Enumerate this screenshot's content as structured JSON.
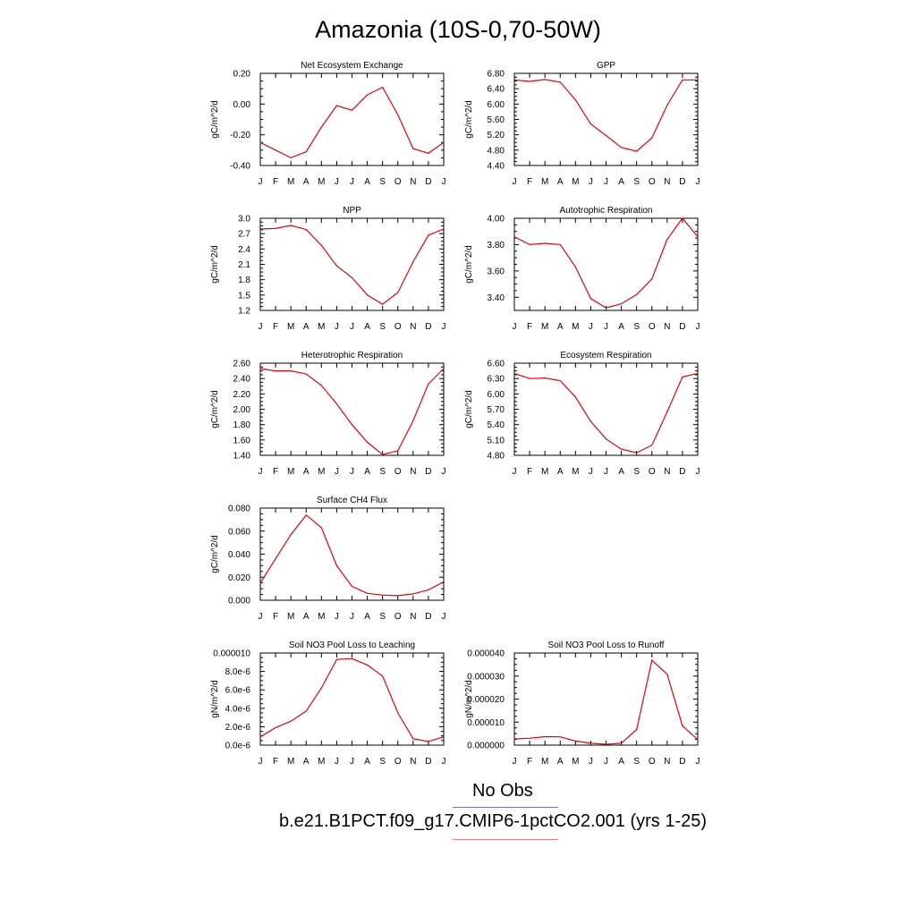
{
  "page": {
    "title": "Amazonia (10S-0,70-50W)"
  },
  "months": [
    "J",
    "F",
    "M",
    "A",
    "M",
    "J",
    "J",
    "A",
    "S",
    "O",
    "N",
    "D",
    "J"
  ],
  "colors": {
    "model": "#e8000b",
    "obs": "#7070f0",
    "obs_legend": "#7070f0",
    "model_legend": "#f08080"
  },
  "legend": {
    "obs_label": "No Obs",
    "model_label": "b.e21.B1PCT.f09_g17.CMIP6-1pctCO2.001 (yrs 1-25)"
  },
  "chart_data": [
    {
      "type": "line",
      "title": "Net Ecosystem Exchange",
      "ylabel": "gC/m^2/d",
      "ylim": [
        -0.4,
        0.2
      ],
      "yticks": [
        "0.20",
        "0.00",
        "-0.20",
        "-0.40"
      ],
      "ytick_values": [
        0.2,
        0.0,
        -0.2,
        -0.4
      ],
      "values": [
        -0.25,
        -0.3,
        -0.35,
        -0.31,
        -0.15,
        -0.01,
        -0.04,
        0.06,
        0.11,
        -0.07,
        -0.29,
        -0.32,
        -0.25
      ]
    },
    {
      "type": "line",
      "title": "GPP",
      "ylabel": "gC/m^2/d",
      "ylim": [
        4.4,
        6.8
      ],
      "yticks": [
        "6.80",
        "6.40",
        "6.00",
        "5.60",
        "5.20",
        "4.80",
        "4.40"
      ],
      "ytick_values": [
        6.8,
        6.4,
        6.0,
        5.6,
        5.2,
        4.8,
        4.4
      ],
      "values": [
        6.63,
        6.59,
        6.64,
        6.57,
        6.11,
        5.48,
        5.18,
        4.87,
        4.77,
        5.12,
        5.97,
        6.63,
        6.63
      ]
    },
    {
      "type": "line",
      "title": "NPP",
      "ylabel": "gC/m^2/d",
      "ylim": [
        1.2,
        3.0
      ],
      "yticks": [
        "3.0",
        "2.7",
        "2.4",
        "2.1",
        "1.8",
        "1.5",
        "1.2"
      ],
      "ytick_values": [
        3.0,
        2.7,
        2.4,
        2.1,
        1.8,
        1.5,
        1.2
      ],
      "values": [
        2.79,
        2.8,
        2.86,
        2.78,
        2.47,
        2.07,
        1.84,
        1.5,
        1.32,
        1.55,
        2.15,
        2.67,
        2.79
      ]
    },
    {
      "type": "line",
      "title": "Autotrophic Respiration",
      "ylabel": "gC/m^2/d",
      "ylim": [
        3.3,
        4.0
      ],
      "yticks": [
        "4.00",
        "3.80",
        "3.60",
        "3.40"
      ],
      "ytick_values": [
        4.0,
        3.8,
        3.6,
        3.4
      ],
      "values": [
        3.86,
        3.8,
        3.81,
        3.8,
        3.63,
        3.39,
        3.32,
        3.35,
        3.42,
        3.54,
        3.84,
        4.0,
        3.86
      ]
    },
    {
      "type": "line",
      "title": "Heterotrophic Respiration",
      "ylabel": "gC/m^2/d",
      "ylim": [
        1.4,
        2.6
      ],
      "yticks": [
        "2.60",
        "2.40",
        "2.20",
        "2.00",
        "1.80",
        "1.60",
        "1.40"
      ],
      "ytick_values": [
        2.6,
        2.4,
        2.2,
        2.0,
        1.8,
        1.6,
        1.4
      ],
      "values": [
        2.53,
        2.5,
        2.5,
        2.46,
        2.31,
        2.07,
        1.8,
        1.57,
        1.41,
        1.46,
        1.85,
        2.33,
        2.53
      ]
    },
    {
      "type": "line",
      "title": "Ecosystem Respiration",
      "ylabel": "gC/m^2/d",
      "ylim": [
        4.8,
        6.6
      ],
      "yticks": [
        "6.60",
        "6.30",
        "6.00",
        "5.70",
        "5.40",
        "5.10",
        "4.80"
      ],
      "ytick_values": [
        6.6,
        6.3,
        6.0,
        5.7,
        5.4,
        5.1,
        4.8
      ],
      "values": [
        6.4,
        6.3,
        6.31,
        6.26,
        5.94,
        5.46,
        5.12,
        4.92,
        4.85,
        5.0,
        5.65,
        6.33,
        6.4
      ]
    },
    {
      "type": "line",
      "title": "Surface CH4 Flux",
      "ylabel": "gC/m^2/d",
      "ylim": [
        0.0,
        0.08
      ],
      "yticks": [
        "0.080",
        "0.060",
        "0.040",
        "0.020",
        "0.000"
      ],
      "ytick_values": [
        0.08,
        0.06,
        0.04,
        0.02,
        0.0
      ],
      "values": [
        0.015,
        0.036,
        0.057,
        0.074,
        0.063,
        0.03,
        0.012,
        0.006,
        0.0045,
        0.004,
        0.0055,
        0.009,
        0.016
      ]
    },
    {
      "type": "line",
      "title": "Soil NO3 Pool Loss to Leaching",
      "ylabel": "gN/m^2/d",
      "ylim": [
        0.0,
        1e-05
      ],
      "yticks": [
        "0.000010",
        "8.0e-6",
        "6.0e-6",
        "4.0e-6",
        "2.0e-6",
        "0.0e-6"
      ],
      "ytick_values": [
        1e-05,
        8e-06,
        6e-06,
        4e-06,
        2e-06,
        0.0
      ],
      "values": [
        9e-07,
        1.9e-06,
        2.6e-06,
        3.7e-06,
        6.2e-06,
        9.3e-06,
        9.4e-06,
        8.7e-06,
        7.5e-06,
        3.5e-06,
        7e-07,
        4e-07,
        9e-07
      ]
    },
    {
      "type": "line",
      "title": "Soil NO3 Pool Loss to Runoff",
      "ylabel": "gN/m^2/d",
      "ylim": [
        0.0,
        4e-05
      ],
      "yticks": [
        "0.000040",
        "0.000030",
        "0.000020",
        "0.000010",
        "0.000000"
      ],
      "ytick_values": [
        4e-05,
        3e-05,
        2e-05,
        1e-05,
        0.0
      ],
      "values": [
        2.7e-06,
        3e-06,
        3.7e-06,
        3.6e-06,
        1.8e-06,
        8e-07,
        4e-07,
        8e-07,
        6.8e-06,
        3.69e-05,
        3.08e-05,
        8.4e-06,
        2.4e-06
      ]
    }
  ]
}
